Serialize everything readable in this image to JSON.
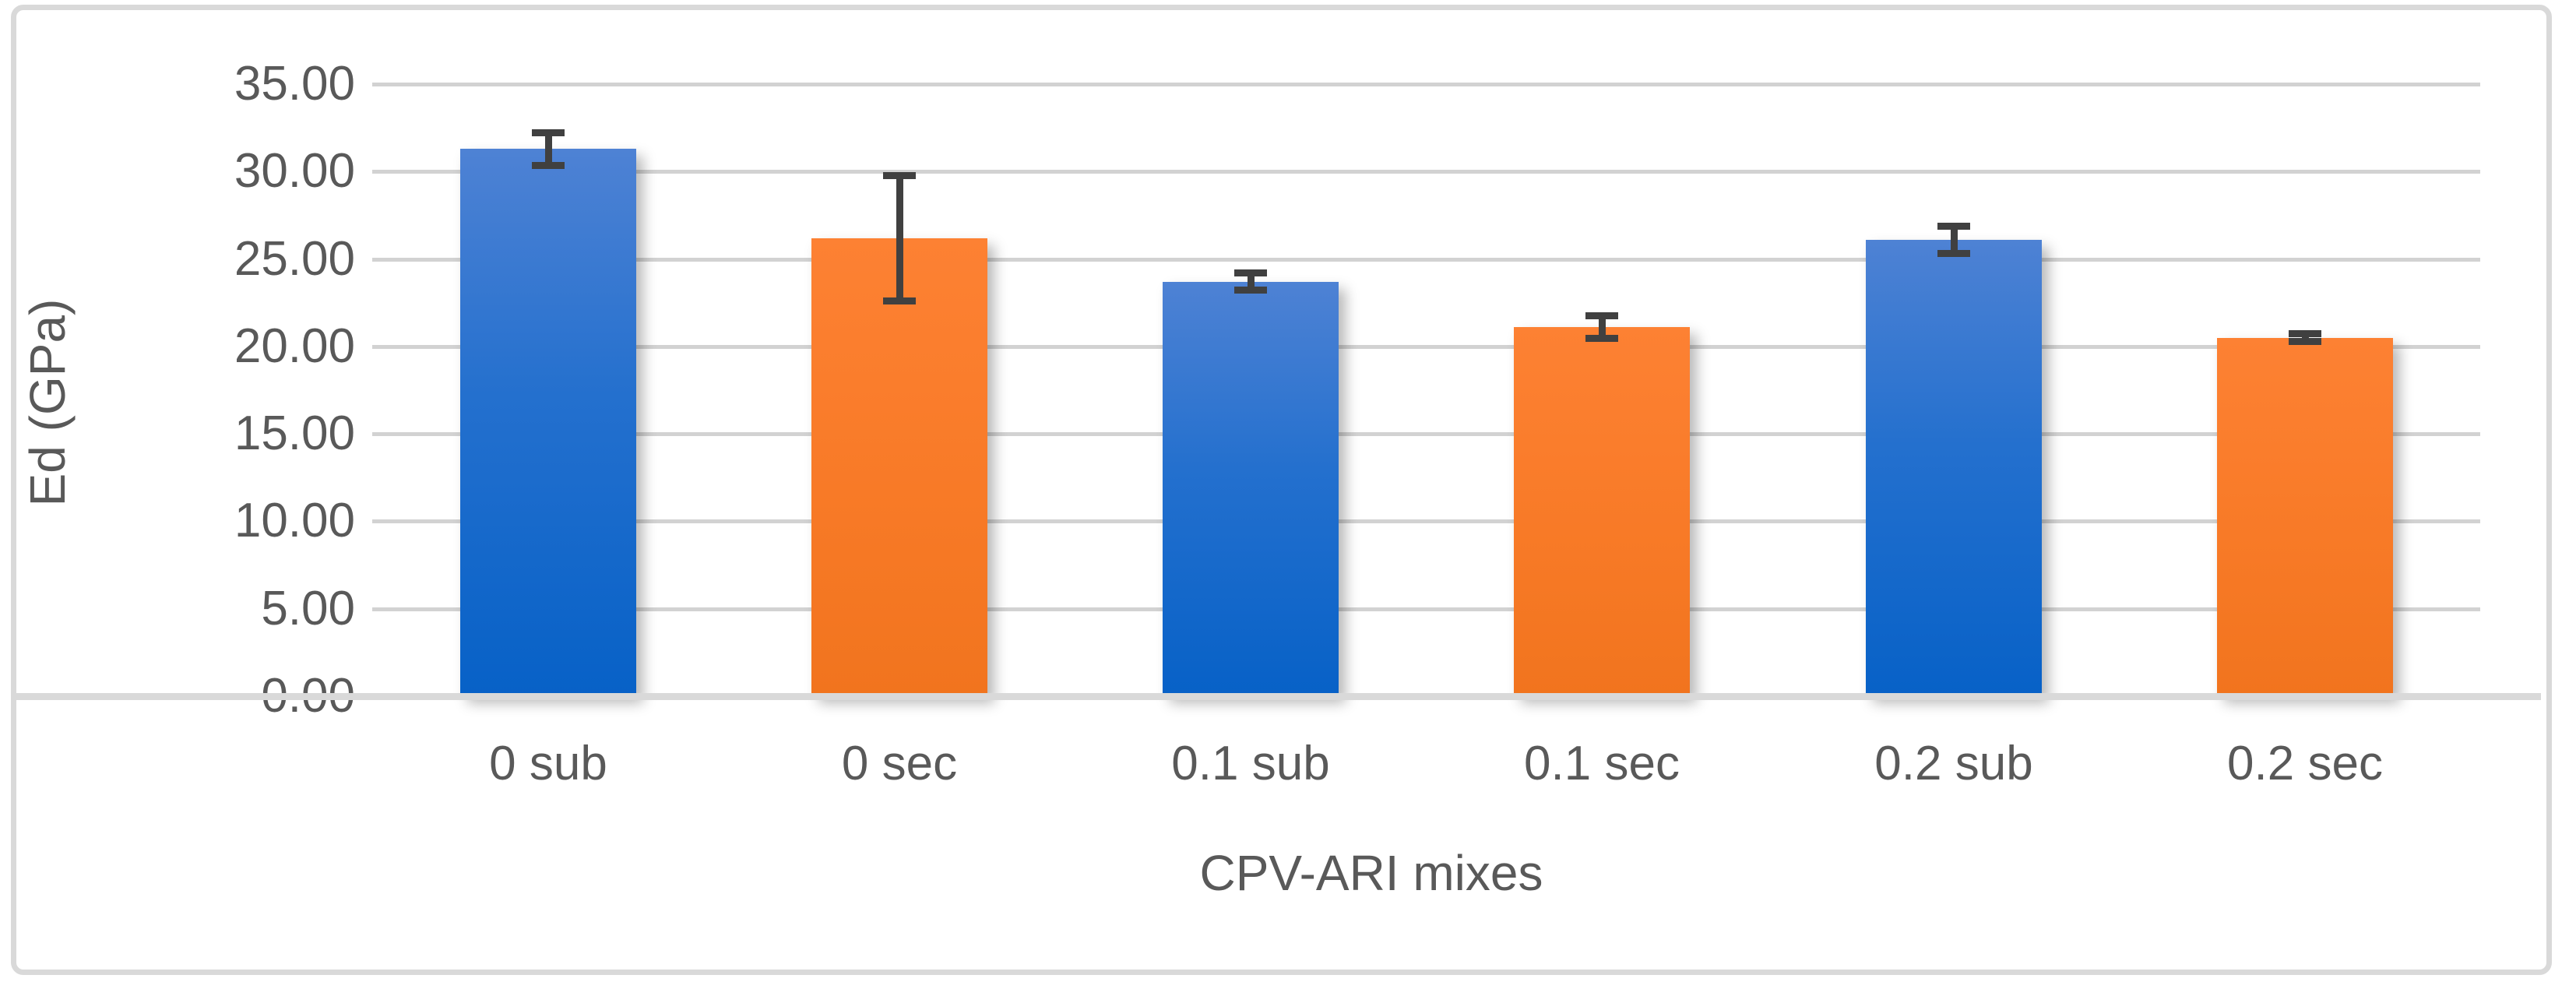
{
  "chart_data": {
    "type": "bar",
    "title": "",
    "xlabel": "CPV-ARI mixes",
    "ylabel": "Ed (GPa)",
    "ylim": [
      0,
      35
    ],
    "ytick_step": 5,
    "ytick_labels": [
      "0.00",
      "5.00",
      "10.00",
      "15.00",
      "20.00",
      "25.00",
      "30.00",
      "35.00"
    ],
    "grid": true,
    "legend": "none",
    "categories": [
      "0 sub",
      "0 sec",
      "0.1 sub",
      "0.1 sec",
      "0.2 sub",
      "0.2 sec"
    ],
    "values": [
      31.3,
      26.2,
      23.7,
      21.1,
      26.1,
      20.5
    ],
    "error_bars": [
      1.05,
      3.7,
      0.6,
      0.75,
      0.9,
      0.35
    ],
    "bar_color_keys": [
      "blue",
      "orange",
      "blue",
      "orange",
      "blue",
      "orange"
    ],
    "colors": {
      "blue_top": "#4E82D4",
      "blue_bottom": "#0761C7",
      "orange_top": "#FD8133",
      "orange_bottom": "#F1741E",
      "error_bar": "#404040",
      "gridline": "#D2D2D2",
      "axis_line": "#D9D9D9",
      "frame_border": "#D9D9D9",
      "text": "#595959"
    }
  }
}
